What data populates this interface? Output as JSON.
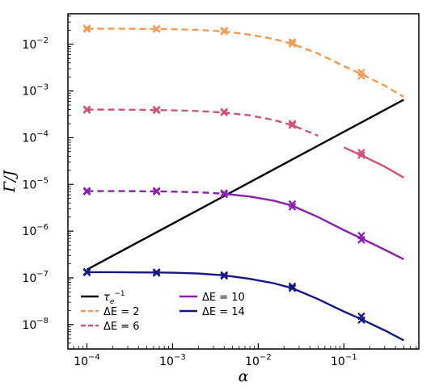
{
  "chart_data": {
    "type": "line",
    "xlabel": "α",
    "ylabel": "Γ/J",
    "xscale": "log",
    "yscale": "log",
    "xlim": [
      6e-05,
      0.75
    ],
    "ylim": [
      3e-09,
      0.045
    ],
    "x_ticks": [
      {
        "value": 0.0001,
        "base": "10",
        "exp": "−4"
      },
      {
        "value": 0.001,
        "base": "10",
        "exp": "−3"
      },
      {
        "value": 0.01,
        "base": "10",
        "exp": "−2"
      },
      {
        "value": 0.1,
        "base": "10",
        "exp": "−1"
      }
    ],
    "y_ticks": [
      {
        "value": 1e-08,
        "base": "10",
        "exp": "−8"
      },
      {
        "value": 1e-07,
        "base": "10",
        "exp": "−7"
      },
      {
        "value": 1e-06,
        "base": "10",
        "exp": "−6"
      },
      {
        "value": 1e-05,
        "base": "10",
        "exp": "−5"
      },
      {
        "value": 0.0001,
        "base": "10",
        "exp": "−4"
      },
      {
        "value": 0.001,
        "base": "10",
        "exp": "−3"
      },
      {
        "value": 0.01,
        "base": "10",
        "exp": "−2"
      }
    ],
    "legend_position": "bottom-left",
    "legend_columns": 2,
    "series": [
      {
        "name": "τ_e^{-1}",
        "legend_main": "τ",
        "legend_sub": "e",
        "legend_sup": "−1",
        "color": "#000000",
        "x": [
          0.0001,
          0.5
        ],
        "y": [
          1.5e-07,
          0.00065
        ],
        "dashed_until": null,
        "markers": null
      },
      {
        "name": "ΔE = 2",
        "color": "#f79a4f",
        "x": [
          0.0001,
          0.0002,
          0.0004,
          0.00065,
          0.001,
          0.002,
          0.004,
          0.008,
          0.015,
          0.025,
          0.05,
          0.1,
          0.16,
          0.3,
          0.5
        ],
        "y": [
          0.0215,
          0.0215,
          0.0213,
          0.0212,
          0.021,
          0.0203,
          0.0188,
          0.016,
          0.013,
          0.0102,
          0.0063,
          0.0034,
          0.0023,
          0.0013,
          0.00075
        ],
        "dashed_until": 0.5,
        "markers": {
          "x": [
            0.0001,
            0.00065,
            0.004,
            0.025,
            0.16
          ],
          "y": [
            0.021,
            0.021,
            0.0188,
            0.0102,
            0.0021
          ],
          "y2": [
            0.022,
            0.0215,
            0.0195,
            0.0112,
            0.0025
          ]
        }
      },
      {
        "name": "ΔE = 6",
        "color": "#d3527a",
        "x": [
          0.0001,
          0.0002,
          0.0004,
          0.00065,
          0.001,
          0.002,
          0.004,
          0.008,
          0.015,
          0.025,
          0.05,
          0.1,
          0.16,
          0.3,
          0.5
        ],
        "y": [
          0.0004,
          0.0004,
          0.000395,
          0.00039,
          0.000385,
          0.000372,
          0.000345,
          0.0003,
          0.00024,
          0.000185,
          0.00011,
          6.2e-05,
          4.2e-05,
          2.4e-05,
          1.4e-05
        ],
        "dashed_until": 0.065,
        "markers": {
          "x": [
            0.0001,
            0.00065,
            0.004,
            0.025,
            0.16
          ],
          "y": [
            0.00039,
            0.000385,
            0.000345,
            0.000185,
            4.2e-05
          ],
          "y2": [
            0.000405,
            0.0004,
            0.00036,
            0.0002,
            4.8e-05
          ]
        }
      },
      {
        "name": "ΔE = 10",
        "color": "#8a1fb0",
        "x": [
          0.0001,
          0.0002,
          0.0004,
          0.00065,
          0.001,
          0.002,
          0.004,
          0.008,
          0.015,
          0.025,
          0.05,
          0.1,
          0.16,
          0.3,
          0.5
        ],
        "y": [
          7.2e-06,
          7.2e-06,
          7.15e-06,
          7.1e-06,
          7e-06,
          6.8e-06,
          6.3e-06,
          5.5e-06,
          4.5e-06,
          3.5e-06,
          2e-06,
          1.05e-06,
          7e-07,
          4e-07,
          2.5e-07
        ],
        "dashed_until": 0.004,
        "markers": {
          "x": [
            0.0001,
            0.00065,
            0.004,
            0.025,
            0.16
          ],
          "y": [
            7e-06,
            7e-06,
            6.1e-06,
            3.3e-06,
            6.5e-07
          ],
          "y2": [
            7.3e-06,
            7.3e-06,
            6.5e-06,
            3.8e-06,
            8e-07
          ]
        }
      },
      {
        "name": "ΔE = 14",
        "color": "#16168a",
        "x": [
          0.0001,
          0.0002,
          0.0004,
          0.00065,
          0.001,
          0.002,
          0.004,
          0.008,
          0.015,
          0.025,
          0.05,
          0.1,
          0.16,
          0.3,
          0.5
        ],
        "y": [
          1.32e-07,
          1.32e-07,
          1.31e-07,
          1.3e-07,
          1.29e-07,
          1.24e-07,
          1.13e-07,
          9.5e-08,
          7.7e-08,
          6e-08,
          3.5e-08,
          1.9e-08,
          1.3e-08,
          7.5e-09,
          4.6e-09
        ],
        "dashed_until": null,
        "markers": {
          "x": [
            0.0001,
            0.00065,
            0.004,
            0.025,
            0.16
          ],
          "y": [
            1.3e-07,
            1.27e-07,
            1.1e-07,
            6e-08,
            1.25e-08
          ],
          "y2": [
            1.35e-07,
            1.32e-07,
            1.15e-07,
            6.6e-08,
            1.5e-08
          ]
        }
      }
    ],
    "legend": [
      {
        "series": 0,
        "label_main": "τ",
        "label_sub": "e",
        "label_sup": "−1",
        "dashed": false
      },
      {
        "series": 1,
        "label": "ΔE = 2",
        "dashed": true
      },
      {
        "series": 2,
        "label": "ΔE = 6",
        "dashed": true
      },
      {
        "series": 3,
        "label": "ΔE = 10",
        "dashed": false
      },
      {
        "series": 4,
        "label": "ΔE = 14",
        "dashed": false
      }
    ]
  }
}
